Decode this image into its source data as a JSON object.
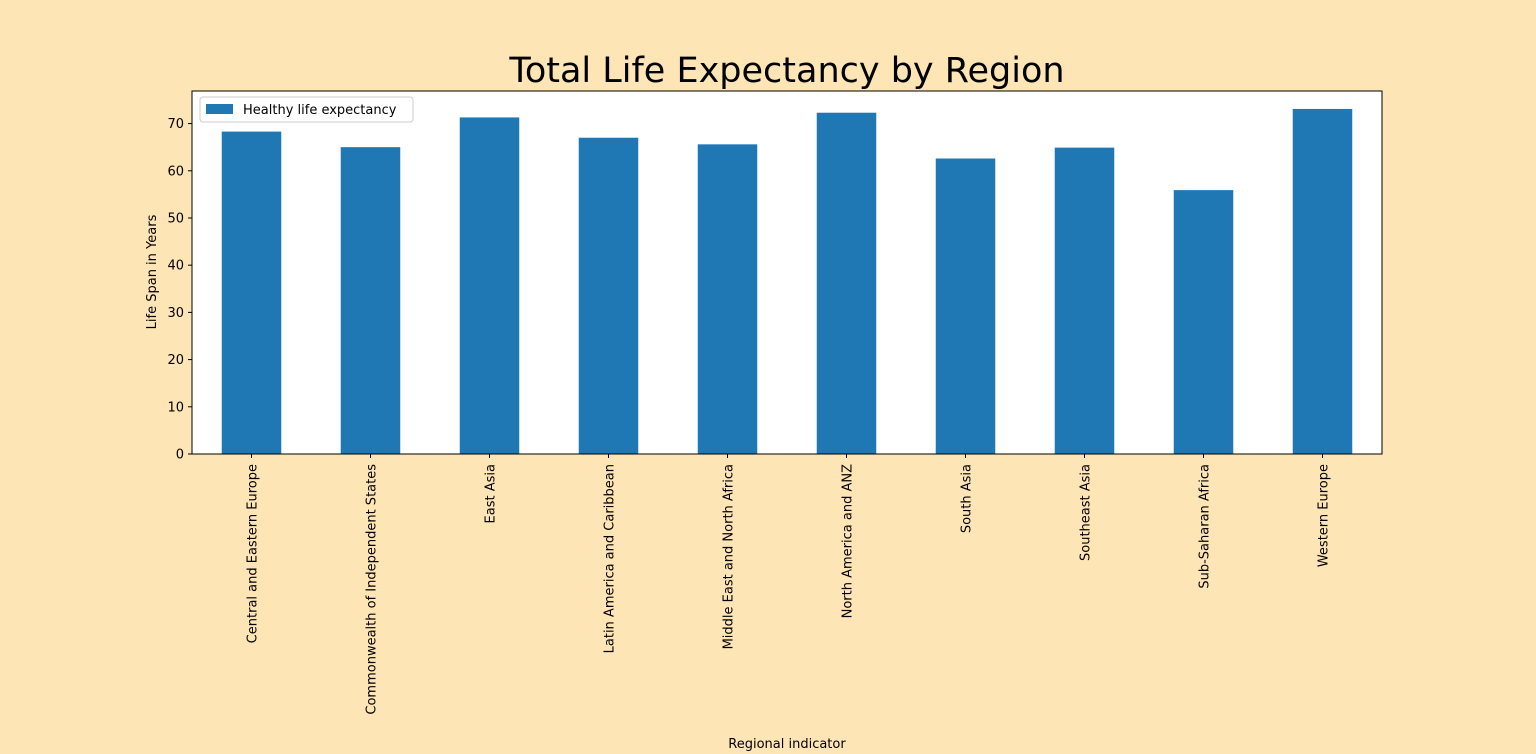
{
  "chart_data": {
    "type": "bar",
    "title": "Total Life Expectancy by Region",
    "xlabel": "Regional indicator",
    "ylabel": "Life Span in Years",
    "categories": [
      "Central and Eastern Europe",
      "Commonwealth of Independent States",
      "East Asia",
      "Latin America and Caribbean",
      "Middle East and North Africa",
      "North America and ANZ",
      "South Asia",
      "Southeast Asia",
      "Sub-Saharan Africa",
      "Western Europe"
    ],
    "series": [
      {
        "name": "Healthy life expectancy",
        "color": "#1f77b4",
        "values": [
          68.3,
          65.0,
          71.3,
          67.0,
          65.6,
          72.3,
          62.6,
          64.9,
          55.9,
          73.1
        ]
      }
    ],
    "ylim": [
      0,
      76.9
    ],
    "yticks": [
      0,
      10,
      20,
      30,
      40,
      50,
      60,
      70
    ],
    "legend_position": "top-left",
    "grid": false,
    "colors": {
      "figure_background": "#fee5b6",
      "plot_background": "#ffffff"
    }
  }
}
